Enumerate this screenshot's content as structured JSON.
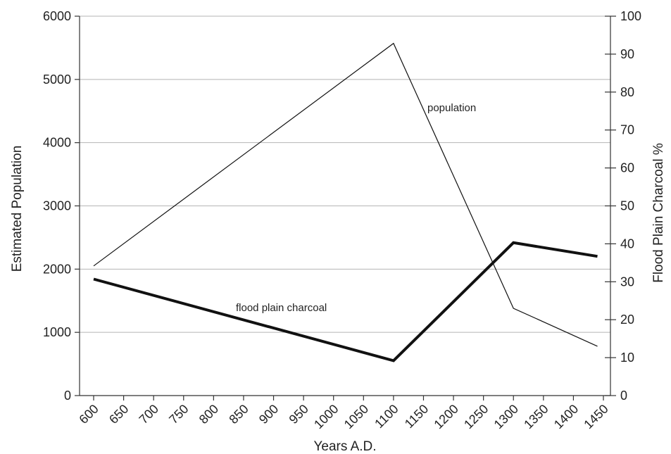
{
  "chart_data": {
    "type": "line",
    "x": {
      "label": "Years A.D.",
      "ticks": [
        600,
        650,
        700,
        750,
        800,
        850,
        900,
        950,
        1000,
        1050,
        1100,
        1150,
        1200,
        1250,
        1300,
        1350,
        1400,
        1450
      ],
      "range": [
        600,
        1450
      ]
    },
    "y_left": {
      "label": "Estimated Population",
      "ticks": [
        0,
        1000,
        2000,
        3000,
        4000,
        5000,
        6000
      ],
      "range": [
        0,
        6000
      ]
    },
    "y_right": {
      "label": "Flood Plain Charcoal %",
      "ticks": [
        0,
        10,
        20,
        30,
        40,
        50,
        60,
        70,
        80,
        90,
        100
      ],
      "range": [
        0,
        100
      ]
    },
    "grid": true,
    "series": [
      {
        "name": "population",
        "axis": "left",
        "points": [
          [
            600,
            2050
          ],
          [
            1100,
            5570
          ],
          [
            1300,
            1380
          ],
          [
            1440,
            780
          ]
        ]
      },
      {
        "name": "flood plain charcoal",
        "axis": "right",
        "points": [
          [
            600,
            30.7
          ],
          [
            1100,
            9.2
          ],
          [
            1300,
            40.3
          ],
          [
            1440,
            36.7
          ]
        ]
      }
    ],
    "annotations": [
      {
        "text": "population",
        "series": "population"
      },
      {
        "text": "flood plain charcoal",
        "series": "flood plain charcoal"
      }
    ]
  }
}
